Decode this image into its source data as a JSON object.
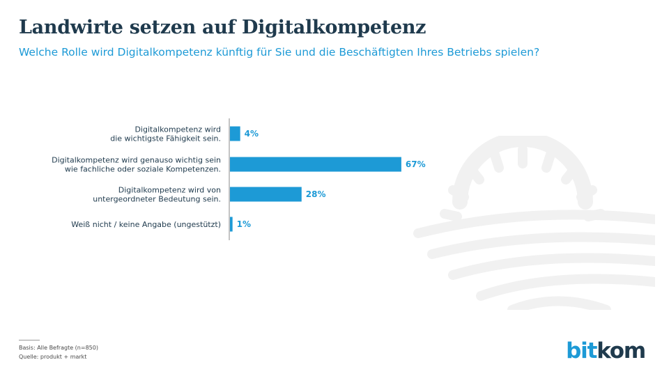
{
  "header": {
    "title": "Landwirte setzen auf Digitalkompetenz",
    "subtitle": "Welche Rolle wird Digitalkompetenz künftig für Sie und die Beschäftigten Ihres Betriebs spielen?"
  },
  "chart_data": {
    "type": "bar",
    "orientation": "horizontal",
    "categories": [
      [
        "Digitalkompetenz wird",
        "die wichtigste Fähigkeit sein."
      ],
      [
        "Digitalkompetenz wird genauso wichtig sein",
        "wie fachliche oder soziale Kompetenzen."
      ],
      [
        "Digitalkompetenz wird von",
        "untergeordneter Bedeutung sein."
      ],
      [
        "Weiß nicht / keine Angabe (ungestützt)"
      ]
    ],
    "values": [
      4,
      67,
      28,
      1
    ],
    "value_labels": [
      "4%",
      "67%",
      "28%",
      "1%"
    ],
    "unit": "%",
    "xlim": [
      0,
      100
    ],
    "grid": false,
    "bar_color": "#1d9ad6",
    "label_color": "#1f3a4d",
    "value_label_color": "#1d9ad6"
  },
  "footer": {
    "basis": "Basis: Alle Befragte (n=850)",
    "source": "Quelle: produkt + markt"
  },
  "logo": {
    "part1": "bit",
    "part2": "kom"
  },
  "decoration": {
    "watermark_icon": "sun-over-field-icon",
    "color": "#f3f3f3"
  }
}
